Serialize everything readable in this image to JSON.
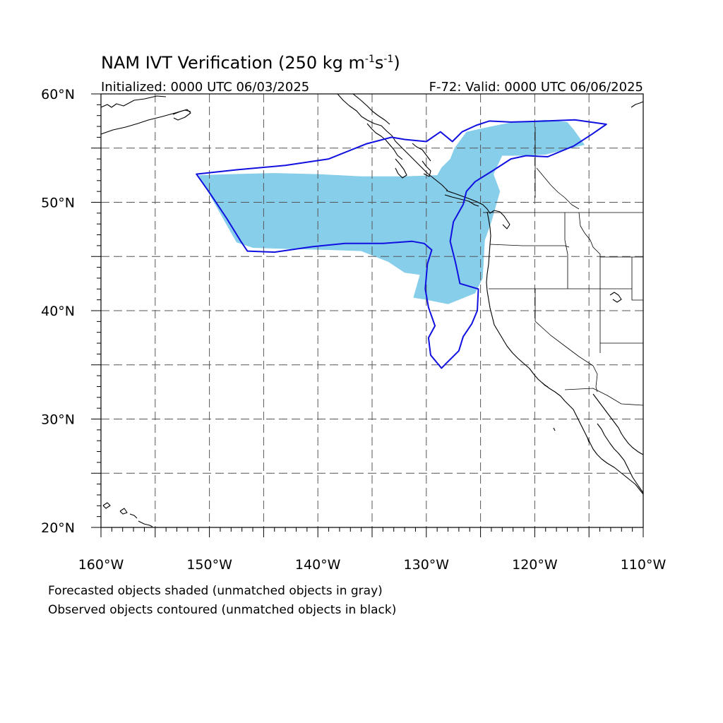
{
  "title": {
    "main": "NAM IVT Verification (250 kg m",
    "sup1": "-1",
    "mid": "s",
    "sup2": "-1",
    "end": ")",
    "initialized": "Initialized: 0000 UTC 06/03/2025",
    "valid": "F-72: Valid: 0000 UTC 06/06/2025"
  },
  "axes": {
    "lon_range": [
      -160,
      -110
    ],
    "lat_range": [
      20,
      60
    ],
    "lon_ticks": [
      {
        "value": -160,
        "label": "160°W"
      },
      {
        "value": -150,
        "label": "150°W"
      },
      {
        "value": -140,
        "label": "140°W"
      },
      {
        "value": -130,
        "label": "130°W"
      },
      {
        "value": -120,
        "label": "120°W"
      },
      {
        "value": -110,
        "label": "110°W"
      }
    ],
    "lat_ticks": [
      {
        "value": 20,
        "label": "20°N"
      },
      {
        "value": 30,
        "label": "30°N"
      },
      {
        "value": 40,
        "label": "40°N"
      },
      {
        "value": 50,
        "label": "50°N"
      },
      {
        "value": 60,
        "label": "60°N"
      }
    ],
    "grid_lons": [
      -155,
      -150,
      -145,
      -140,
      -135,
      -130,
      -125,
      -120,
      -115
    ],
    "grid_lats": [
      25,
      30,
      35,
      40,
      45,
      50,
      55
    ]
  },
  "caption": {
    "line1": "Forecasted objects shaded (unmatched objects in gray)",
    "line2": "Observed objects contoured (unmatched objects in black)"
  },
  "colors": {
    "forecast_fill": "#87ceeb",
    "observed_contour": "#1010e0",
    "grid": "#555555",
    "coast": "#000000"
  },
  "forecast_object": [
    [
      -151,
      52.5
    ],
    [
      -148,
      52.6
    ],
    [
      -144,
      52.7
    ],
    [
      -140,
      52.6
    ],
    [
      -136,
      52.4
    ],
    [
      -132,
      52.4
    ],
    [
      -129,
      52.5
    ],
    [
      -128.6,
      53.2
    ],
    [
      -127.8,
      54.0
    ],
    [
      -127.4,
      55.0
    ],
    [
      -126.3,
      56.5
    ],
    [
      -124,
      57.0
    ],
    [
      -122,
      57.4
    ],
    [
      -119,
      57.6
    ],
    [
      -117,
      57.4
    ],
    [
      -116.4,
      56.7
    ],
    [
      -115.4,
      55.3
    ],
    [
      -117,
      54.9
    ],
    [
      -119,
      54.4
    ],
    [
      -121,
      54.3
    ],
    [
      -123,
      54.3
    ],
    [
      -123.8,
      52.6
    ],
    [
      -123.2,
      51.0
    ],
    [
      -124.0,
      48.2
    ],
    [
      -124.6,
      46.5
    ],
    [
      -124.8,
      43.0
    ],
    [
      -125.5,
      41.6
    ],
    [
      -128,
      40.6
    ],
    [
      -130,
      41.0
    ],
    [
      -131.2,
      41.2
    ],
    [
      -130.6,
      43.3
    ],
    [
      -132,
      43.5
    ],
    [
      -133.5,
      44.5
    ],
    [
      -136,
      45.5
    ],
    [
      -139,
      45.6
    ],
    [
      -143,
      45.7
    ],
    [
      -146,
      45.8
    ],
    [
      -147.5,
      46.3
    ]
  ],
  "observed_object": [
    [
      -151.2,
      52.6
    ],
    [
      -147.5,
      53.0
    ],
    [
      -143,
      53.4
    ],
    [
      -139,
      54.0
    ],
    [
      -135.5,
      55.4
    ],
    [
      -133.2,
      56.0
    ],
    [
      -132,
      55.8
    ],
    [
      -130,
      55.6
    ],
    [
      -128.7,
      56.5
    ],
    [
      -128.2,
      56.1
    ],
    [
      -127.6,
      55.6
    ],
    [
      -126.7,
      56.5
    ],
    [
      -125.4,
      57.1
    ],
    [
      -124.2,
      57.5
    ],
    [
      -122.2,
      57.4
    ],
    [
      -119,
      57.5
    ],
    [
      -116.3,
      57.6
    ],
    [
      -113.4,
      57.2
    ],
    [
      -114.7,
      56.3
    ],
    [
      -116.4,
      55.2
    ],
    [
      -118.8,
      54.2
    ],
    [
      -120.8,
      54.3
    ],
    [
      -122.2,
      54.0
    ],
    [
      -123.9,
      52.9
    ],
    [
      -125.5,
      51.9
    ],
    [
      -126.3,
      51.0
    ],
    [
      -126.6,
      49.8
    ],
    [
      -127.5,
      48.2
    ],
    [
      -127.8,
      46.4
    ],
    [
      -127.3,
      44.4
    ],
    [
      -126.9,
      42.5
    ],
    [
      -125.2,
      42.0
    ],
    [
      -125.3,
      40.0
    ],
    [
      -125.8,
      38.8
    ],
    [
      -126.6,
      37.6
    ],
    [
      -127,
      36.3
    ],
    [
      -128.2,
      35.1
    ],
    [
      -128.6,
      34.7
    ],
    [
      -129.6,
      35.9
    ],
    [
      -129.8,
      37.5
    ],
    [
      -129.2,
      38.6
    ],
    [
      -129.8,
      40.3
    ],
    [
      -130.1,
      42.0
    ],
    [
      -129.9,
      44.3
    ],
    [
      -129.5,
      45.6
    ],
    [
      -130.2,
      46.2
    ],
    [
      -131.3,
      46.4
    ],
    [
      -134,
      46.2
    ],
    [
      -137.5,
      46.2
    ],
    [
      -140.5,
      45.9
    ],
    [
      -144,
      45.4
    ],
    [
      -146.5,
      45.5
    ],
    [
      -147.1,
      46.4
    ],
    [
      -148.4,
      48.5
    ],
    [
      -150,
      50.9
    ]
  ]
}
